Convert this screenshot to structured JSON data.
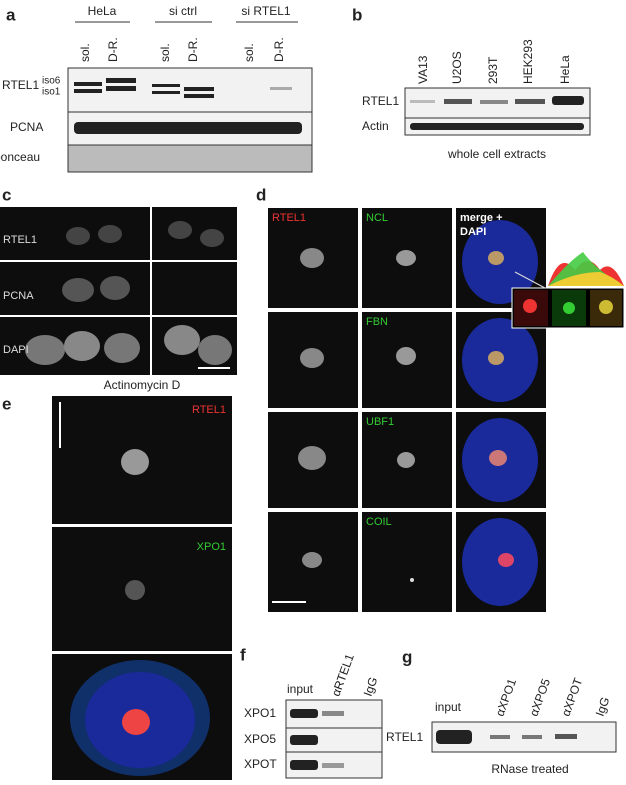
{
  "panels": {
    "a": {
      "letter": "a",
      "groups": [
        "HeLa",
        "si ctrl",
        "si RTEL1"
      ],
      "lanes": [
        "sol.",
        "D-R.",
        "sol.",
        "D-R.",
        "sol.",
        "D-R."
      ],
      "rows": [
        "RTEL1",
        "PCNA",
        "ponceau"
      ],
      "isoforms": [
        "iso6",
        "iso1"
      ]
    },
    "b": {
      "letter": "b",
      "lanes": [
        "VA13",
        "U2OS",
        "293T",
        "HEK293",
        "HeLa"
      ],
      "rows": [
        "RTEL1",
        "Actin"
      ],
      "caption": "whole cell extracts"
    },
    "c": {
      "letter": "c",
      "rows": [
        "RTEL1",
        "PCNA",
        "DAPI"
      ]
    },
    "d": {
      "letter": "d",
      "columns": [
        "RTEL1",
        "NCL",
        "merge +",
        "DAPI"
      ],
      "rows": [
        "FBN",
        "UBF1",
        "COIL"
      ]
    },
    "e": {
      "letter": "e",
      "title": "Actinomycin D",
      "labels": [
        "RTEL1",
        "XPO1"
      ]
    },
    "f": {
      "letter": "f",
      "lanes": [
        "input",
        "αRTEL1",
        "IgG"
      ],
      "rows": [
        "XPO1",
        "XPO5",
        "XPOT"
      ]
    },
    "g": {
      "letter": "g",
      "lanes": [
        "input",
        "αXPO1",
        "αXPO5",
        "αXPOT",
        "IgG"
      ],
      "row": "RTEL1",
      "caption": "RNase treated"
    }
  }
}
